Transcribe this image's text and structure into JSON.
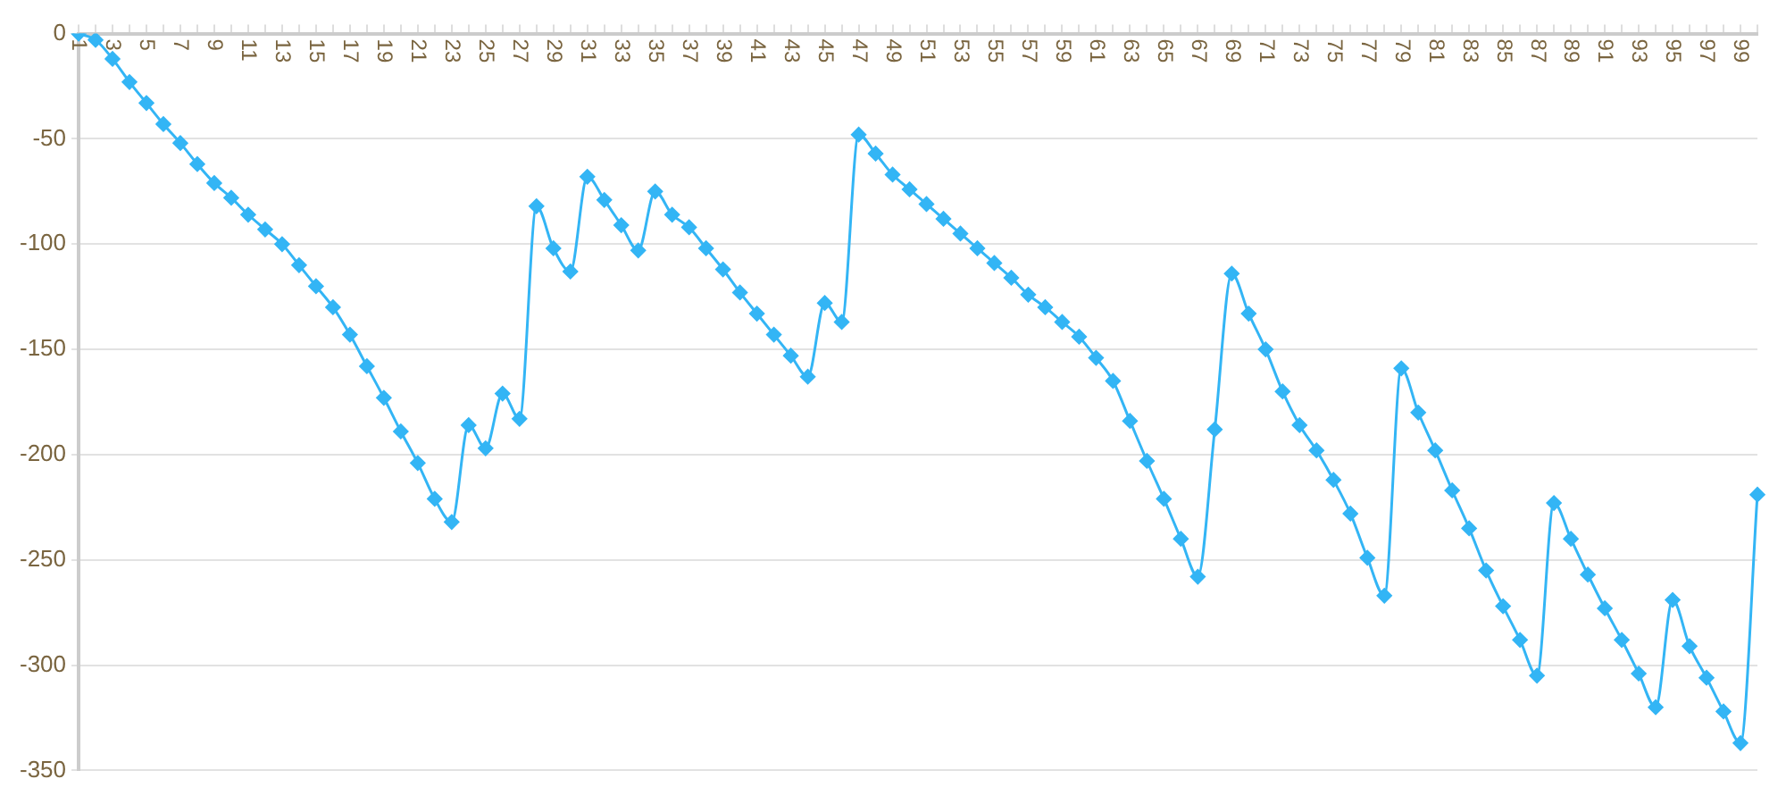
{
  "chart_data": {
    "type": "line",
    "categories": [
      "1",
      null,
      "3",
      null,
      "5",
      null,
      "7",
      null,
      "9",
      null,
      "11",
      null,
      "13",
      null,
      "15",
      null,
      "17",
      null,
      "19",
      null,
      "21",
      null,
      "23",
      null,
      "25",
      null,
      "27",
      null,
      "29",
      null,
      "31",
      null,
      "33",
      null,
      "35",
      null,
      "37",
      null,
      "39",
      null,
      "41",
      null,
      "43",
      null,
      "45",
      null,
      "47",
      null,
      "49",
      null,
      "51",
      null,
      "53",
      null,
      "55",
      null,
      "57",
      null,
      "59",
      null,
      "61",
      null,
      "63",
      null,
      "65",
      null,
      "67",
      null,
      "69",
      null,
      "71",
      null,
      "73",
      null,
      "75",
      null,
      "77",
      null,
      "79",
      null,
      "81",
      null,
      "83",
      null,
      "85",
      null,
      "87",
      null,
      "89",
      null,
      "91",
      null,
      "93",
      null,
      "95",
      null,
      "97",
      null,
      "99",
      null
    ],
    "series": [
      {
        "color": "#33b5f5",
        "values": [
          0,
          -3,
          -12,
          -23,
          -33,
          -43,
          -52,
          -62,
          -71,
          -78,
          -86,
          -93,
          -100,
          -110,
          -120,
          -130,
          -143,
          -158,
          -173,
          -189,
          -204,
          -221,
          -232,
          -186,
          -197,
          -171,
          -183,
          -82,
          -102,
          -113,
          -68,
          -79,
          -91,
          -103,
          -75,
          -86,
          -92,
          -102,
          -112,
          -123,
          -133,
          -143,
          -153,
          -163,
          -128,
          -137,
          -48,
          -57,
          -67,
          -74,
          -81,
          -88,
          -95,
          -102,
          -109,
          -116,
          -124,
          -130,
          -137,
          -144,
          -154,
          -165,
          -184,
          -203,
          -221,
          -240,
          -258,
          -188,
          -114,
          -133,
          -150,
          -170,
          -186,
          -198,
          -212,
          -228,
          -249,
          -267,
          -159,
          -180,
          -198,
          -217,
          -235,
          -255,
          -272,
          -288,
          -305,
          -223,
          -240,
          -257,
          -273,
          -288,
          -304,
          -320,
          -269,
          -291,
          -306,
          -322,
          -337,
          -219
        ]
      }
    ],
    "ylim": [
      -350,
      0
    ],
    "yticks": [
      -350,
      -300,
      -250,
      -200,
      -150,
      -100,
      -50,
      0
    ],
    "grid": "y",
    "legend": false,
    "marker": "diamond",
    "line_style": "solid"
  }
}
